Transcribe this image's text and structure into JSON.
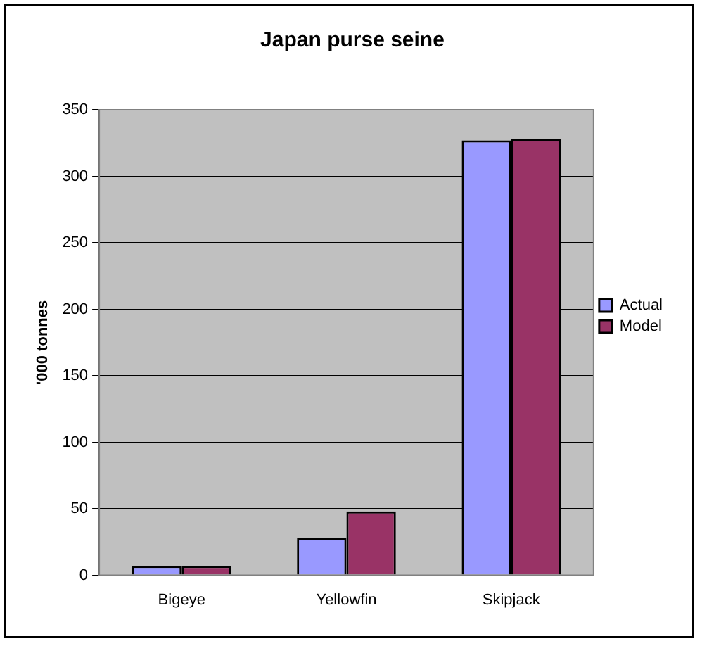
{
  "chart_data": {
    "type": "bar",
    "title": "Japan purse seine",
    "ylabel": "'000 tonnes",
    "categories": [
      "Bigeye",
      "Yellowfin",
      "Skipjack"
    ],
    "series": [
      {
        "name": "Actual",
        "color": "#9999ff",
        "values": [
          7,
          28,
          327
        ]
      },
      {
        "name": "Model",
        "color": "#993366",
        "values": [
          7,
          48,
          328
        ]
      }
    ],
    "ylim": [
      0,
      350
    ],
    "yticks": [
      0,
      50,
      100,
      150,
      200,
      250,
      300,
      350
    ],
    "grid": "y",
    "legend": "right"
  }
}
